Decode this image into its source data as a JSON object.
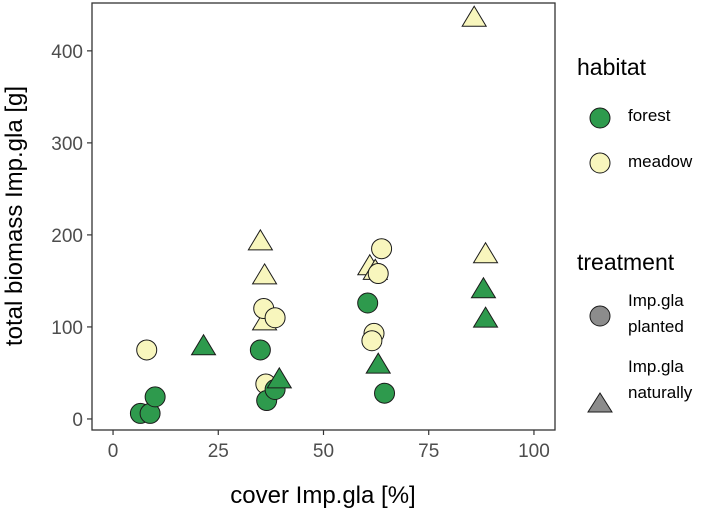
{
  "chart_data": {
    "type": "scatter",
    "xlabel": "cover Imp.gla [%]",
    "ylabel": "total biomass Imp.gla [g]",
    "xlim": [
      -5,
      105
    ],
    "ylim": [
      -12,
      452
    ],
    "x_ticks": [
      0,
      25,
      50,
      75,
      100
    ],
    "y_ticks": [
      0,
      100,
      200,
      300,
      400
    ],
    "grid": false,
    "legend_placement": "right",
    "colors": {
      "forest": "#2e9a4d",
      "meadow": "#f8f6bd",
      "neutral": "#8c8c8c",
      "stroke": "#1a1a1a"
    },
    "legend": {
      "habitat": {
        "title": "habitat",
        "entries": [
          {
            "label": "forest",
            "color": "#2e9a4d"
          },
          {
            "label": "meadow",
            "color": "#f8f6bd"
          }
        ]
      },
      "treatment": {
        "title": "treatment",
        "entries": [
          {
            "label_lines": [
              "Imp.gla",
              "planted"
            ],
            "shape": "circle"
          },
          {
            "label_lines": [
              "Imp.gla",
              "naturally"
            ],
            "shape": "triangle"
          }
        ]
      }
    },
    "points": [
      {
        "x": 6.5,
        "y": 6,
        "habitat": "forest",
        "treatment": "planted"
      },
      {
        "x": 8.8,
        "y": 6,
        "habitat": "forest",
        "treatment": "planted"
      },
      {
        "x": 10,
        "y": 24,
        "habitat": "forest",
        "treatment": "planted"
      },
      {
        "x": 8,
        "y": 75,
        "habitat": "meadow",
        "treatment": "planted"
      },
      {
        "x": 21.5,
        "y": 78,
        "habitat": "forest",
        "treatment": "naturally"
      },
      {
        "x": 35,
        "y": 192,
        "habitat": "meadow",
        "treatment": "naturally"
      },
      {
        "x": 36,
        "y": 155,
        "habitat": "meadow",
        "treatment": "naturally"
      },
      {
        "x": 36,
        "y": 105,
        "habitat": "meadow",
        "treatment": "naturally"
      },
      {
        "x": 35.8,
        "y": 120,
        "habitat": "meadow",
        "treatment": "planted"
      },
      {
        "x": 38.5,
        "y": 110,
        "habitat": "meadow",
        "treatment": "planted"
      },
      {
        "x": 35,
        "y": 75,
        "habitat": "forest",
        "treatment": "planted"
      },
      {
        "x": 36.3,
        "y": 38,
        "habitat": "meadow",
        "treatment": "planted"
      },
      {
        "x": 36.5,
        "y": 20,
        "habitat": "forest",
        "treatment": "planted"
      },
      {
        "x": 38.5,
        "y": 32,
        "habitat": "forest",
        "treatment": "planted"
      },
      {
        "x": 39.5,
        "y": 42,
        "habitat": "forest",
        "treatment": "naturally"
      },
      {
        "x": 61,
        "y": 165,
        "habitat": "meadow",
        "treatment": "naturally"
      },
      {
        "x": 62.3,
        "y": 160,
        "habitat": "meadow",
        "treatment": "naturally"
      },
      {
        "x": 63.8,
        "y": 185,
        "habitat": "meadow",
        "treatment": "planted"
      },
      {
        "x": 63,
        "y": 158,
        "habitat": "meadow",
        "treatment": "planted"
      },
      {
        "x": 60.5,
        "y": 126,
        "habitat": "forest",
        "treatment": "planted"
      },
      {
        "x": 62,
        "y": 93,
        "habitat": "meadow",
        "treatment": "planted"
      },
      {
        "x": 61.5,
        "y": 85,
        "habitat": "meadow",
        "treatment": "planted"
      },
      {
        "x": 63,
        "y": 58,
        "habitat": "forest",
        "treatment": "naturally"
      },
      {
        "x": 64.5,
        "y": 28,
        "habitat": "forest",
        "treatment": "planted"
      },
      {
        "x": 85.8,
        "y": 435,
        "habitat": "meadow",
        "treatment": "naturally"
      },
      {
        "x": 88.5,
        "y": 178,
        "habitat": "meadow",
        "treatment": "naturally"
      },
      {
        "x": 88,
        "y": 140,
        "habitat": "forest",
        "treatment": "naturally"
      },
      {
        "x": 88.5,
        "y": 108,
        "habitat": "forest",
        "treatment": "naturally"
      }
    ]
  }
}
